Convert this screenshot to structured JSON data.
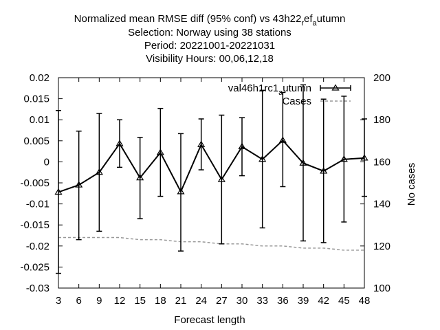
{
  "chart_data": {
    "type": "line",
    "title_lines": [
      "Normalized mean RMSE diff (95% conf) vs 43h22",
      "r",
      "ef",
      "a",
      "utumn",
      "Selection: Norway using    38 stations",
      "Period: 20221001-20221031",
      "Visibility   Hours:  00,06,12,18"
    ],
    "xlabel": "Forecast length",
    "ylabel": "",
    "y2label": "No cases",
    "xlim": [
      3,
      48
    ],
    "ylim": [
      -0.03,
      0.02
    ],
    "y2lim": [
      100,
      200
    ],
    "x_ticks": [
      "3",
      "6",
      "9",
      "12",
      "15",
      "18",
      "21",
      "24",
      "27",
      "30",
      "33",
      "36",
      "39",
      "42",
      "45",
      "48"
    ],
    "y_ticks": [
      "-0.03",
      "-0.025",
      "-0.02",
      "-0.015",
      "-0.01",
      "-0.005",
      "0",
      "0.005",
      "0.01",
      "0.015",
      "0.02"
    ],
    "y2_ticks": [
      "100",
      "120",
      "140",
      "160",
      "180",
      "200"
    ],
    "grid": false,
    "legend_position": "top-right",
    "series": [
      {
        "name": "val46h1rc1",
        "name_sub": "a",
        "name_tail": "utumn",
        "color": "#000000",
        "x": [
          3,
          6,
          9,
          12,
          15,
          18,
          21,
          24,
          27,
          30,
          33,
          36,
          39,
          42,
          45,
          48
        ],
        "values": [
          -0.0072,
          -0.0055,
          -0.0025,
          0.0043,
          -0.0038,
          0.0022,
          -0.0071,
          0.0041,
          -0.0042,
          0.0036,
          0.0006,
          0.0051,
          -0.0003,
          -0.0022,
          0.0006,
          0.0009
        ],
        "err_low": [
          -0.0265,
          -0.0185,
          -0.0165,
          -0.0013,
          -0.0135,
          -0.0082,
          -0.0212,
          -0.0019,
          -0.0195,
          -0.0033,
          -0.0157,
          -0.0059,
          -0.0188,
          -0.0192,
          -0.0143,
          -0.0082
        ],
        "err_high": [
          0.0122,
          0.0073,
          0.0115,
          0.01,
          0.0058,
          0.0127,
          0.0067,
          0.0102,
          0.0111,
          0.0105,
          0.017,
          0.0165,
          0.0183,
          0.0149,
          0.0156,
          0.0102
        ]
      },
      {
        "name": "Cases",
        "color": "#999999",
        "axis": "y2",
        "x": [
          3,
          6,
          9,
          12,
          15,
          18,
          21,
          24,
          27,
          30,
          33,
          36,
          39,
          42,
          45,
          48
        ],
        "values": [
          124,
          124,
          124,
          124,
          123,
          123,
          122,
          122,
          121,
          121,
          120,
          120,
          119,
          119,
          118,
          118
        ]
      }
    ]
  }
}
